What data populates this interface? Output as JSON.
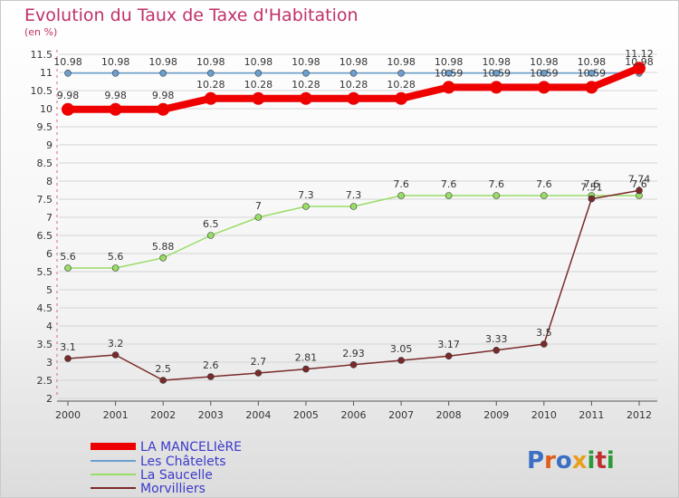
{
  "chart_data": {
    "type": "line",
    "title": "Evolution du Taux de Taxe d'Habitation",
    "ylabel": "(en %)",
    "xlabel": "",
    "x": [
      "2000",
      "2001",
      "2002",
      "2003",
      "2004",
      "2005",
      "2006",
      "2007",
      "2008",
      "2009",
      "2010",
      "2011",
      "2012"
    ],
    "ylim": [
      2,
      11.5
    ],
    "yticks": [
      "2",
      "2.5",
      "3",
      "3.5",
      "4",
      "4.5",
      "5",
      "5.5",
      "6",
      "6.5",
      "7",
      "7.5",
      "8",
      "8.5",
      "9",
      "9.5",
      "10",
      "10.5",
      "11",
      "11.5"
    ],
    "grid": "horizontal",
    "legend_position": "bottom-left",
    "series": [
      {
        "name": "LA MANCELIèRE",
        "color": "#ee0000",
        "values": [
          9.98,
          9.98,
          9.98,
          10.28,
          10.28,
          10.28,
          10.28,
          10.28,
          10.59,
          10.59,
          10.59,
          10.59,
          11.12
        ],
        "labels": [
          "9.98",
          "9.98",
          "9.98",
          "10.28",
          "10.28",
          "10.28",
          "10.28",
          "10.28",
          "10.59",
          "10.59",
          "10.59",
          "10.59",
          "11.12"
        ]
      },
      {
        "name": "Les Châtelets",
        "color": "#6b9fcf",
        "values": [
          10.98,
          10.98,
          10.98,
          10.98,
          10.98,
          10.98,
          10.98,
          10.98,
          10.98,
          10.98,
          10.98,
          10.98,
          10.98
        ],
        "labels": [
          "10.98",
          "10.98",
          "10.98",
          "10.98",
          "10.98",
          "10.98",
          "10.98",
          "10.98",
          "10.98",
          "10.98",
          "10.98",
          "10.98",
          "10.98"
        ]
      },
      {
        "name": "La Saucelle",
        "color": "#99dd66",
        "values": [
          5.6,
          5.6,
          5.88,
          6.5,
          7,
          7.3,
          7.3,
          7.6,
          7.6,
          7.6,
          7.6,
          7.6,
          7.6
        ],
        "labels": [
          "5.6",
          "5.6",
          "5.88",
          "6.5",
          "7",
          "7.3",
          "7.3",
          "7.6",
          "7.6",
          "7.6",
          "7.6",
          "7.6",
          "7.6"
        ]
      },
      {
        "name": "Morvilliers",
        "color": "#7a2a2a",
        "values": [
          3.1,
          3.2,
          2.5,
          2.6,
          2.7,
          2.81,
          2.93,
          3.05,
          3.17,
          3.33,
          3.5,
          7.51,
          7.74
        ],
        "labels": [
          "3.1",
          "3.2",
          "2.5",
          "2.6",
          "2.7",
          "2.81",
          "2.93",
          "3.05",
          "3.17",
          "3.33",
          "3.5",
          "7.51",
          "7.74"
        ]
      }
    ]
  },
  "logo": {
    "text": "Proxiti"
  }
}
